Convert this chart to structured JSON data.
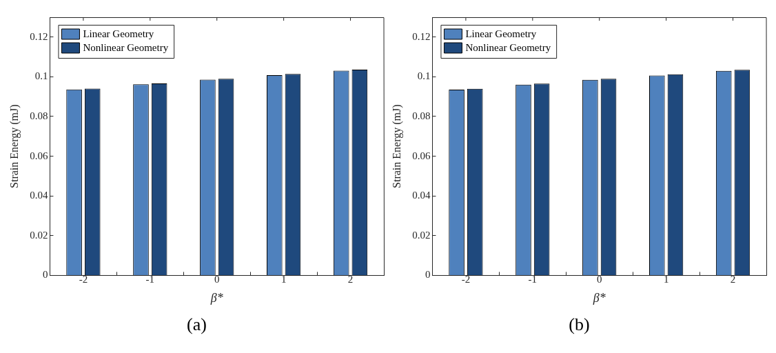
{
  "chart_data": [
    {
      "type": "bar",
      "categories": [
        "-2",
        "-1",
        "0",
        "1",
        "2"
      ],
      "xlabel": "β*",
      "ylabel": "Strain Energy (mJ)",
      "ylim": [
        0,
        0.13
      ],
      "yticks": [
        0,
        0.02,
        0.04,
        0.06,
        0.08,
        0.1,
        0.12
      ],
      "legend": "top left",
      "annotations": [
        "(a)"
      ],
      "series": [
        {
          "name": "Linear Geometry",
          "color": "#4f81bd",
          "values": [
            0.0936,
            0.0962,
            0.0986,
            0.1008,
            0.1031
          ]
        },
        {
          "name": "Nonlinear Geometry",
          "color": "#1f497d",
          "values": [
            0.0941,
            0.0967,
            0.099,
            0.1014,
            0.1036
          ]
        }
      ]
    },
    {
      "type": "bar",
      "categories": [
        "-2",
        "-1",
        "0",
        "1",
        "2"
      ],
      "xlabel": "β*",
      "ylabel": "Strain Energy (mJ)",
      "ylim": [
        0,
        0.13
      ],
      "yticks": [
        0,
        0.02,
        0.04,
        0.06,
        0.08,
        0.1,
        0.12
      ],
      "legend": "top left",
      "annotations": [
        "(b)"
      ],
      "series": [
        {
          "name": "Linear Geometry",
          "color": "#4f81bd",
          "values": [
            0.0935,
            0.0961,
            0.0985,
            0.1007,
            0.103
          ]
        },
        {
          "name": "Nonlinear Geometry",
          "color": "#1f497d",
          "values": [
            0.094,
            0.0966,
            0.099,
            0.1013,
            0.1035
          ]
        }
      ]
    }
  ]
}
